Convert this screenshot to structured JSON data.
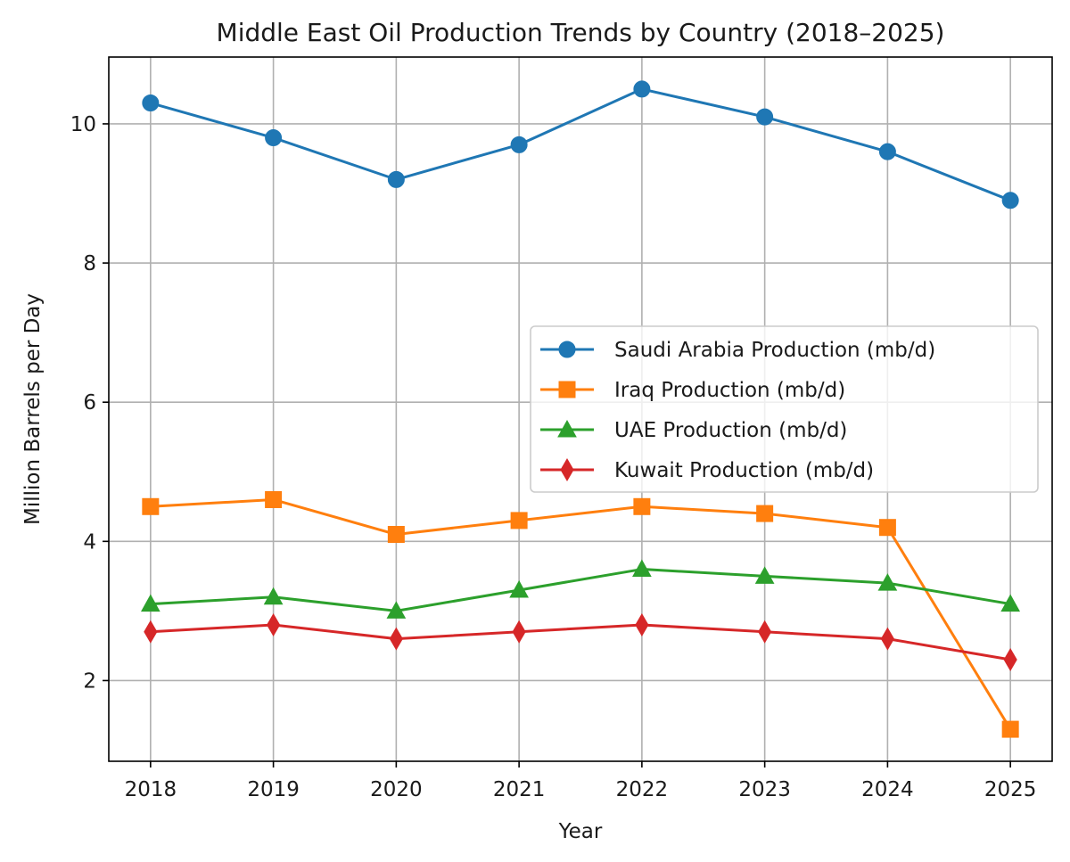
{
  "chart_data": {
    "type": "line",
    "title": "Middle East Oil Production Trends by Country (2018–2025)",
    "xlabel": "Year",
    "ylabel": "Million Barrels per Day",
    "x": [
      2018,
      2019,
      2020,
      2021,
      2022,
      2023,
      2024,
      2025
    ],
    "x_tick_labels": [
      "2018",
      "2019",
      "2020",
      "2021",
      "2022",
      "2023",
      "2024",
      "2025"
    ],
    "y_ticks": [
      2,
      4,
      6,
      8,
      10
    ],
    "y_tick_labels": [
      "2",
      "4",
      "6",
      "8",
      "10"
    ],
    "xlim": [
      2017.66,
      2025.34
    ],
    "ylim": [
      0.84,
      10.96
    ],
    "grid": true,
    "legend_position": "center-right",
    "series": [
      {
        "name": "Saudi Arabia Production (mb/d)",
        "color": "#1f77b4",
        "marker": "circle",
        "values": [
          10.3,
          9.8,
          9.2,
          9.7,
          10.5,
          10.1,
          9.6,
          8.9
        ]
      },
      {
        "name": "Iraq Production (mb/d)",
        "color": "#ff7f0e",
        "marker": "square",
        "values": [
          4.5,
          4.6,
          4.1,
          4.3,
          4.5,
          4.4,
          4.2,
          1.3
        ]
      },
      {
        "name": "UAE Production (mb/d)",
        "color": "#2ca02c",
        "marker": "triangle",
        "values": [
          3.1,
          3.2,
          3.0,
          3.3,
          3.6,
          3.5,
          3.4,
          3.1
        ]
      },
      {
        "name": "Kuwait Production (mb/d)",
        "color": "#d62728",
        "marker": "diamond",
        "values": [
          2.7,
          2.8,
          2.6,
          2.7,
          2.8,
          2.7,
          2.6,
          2.3
        ]
      }
    ]
  }
}
